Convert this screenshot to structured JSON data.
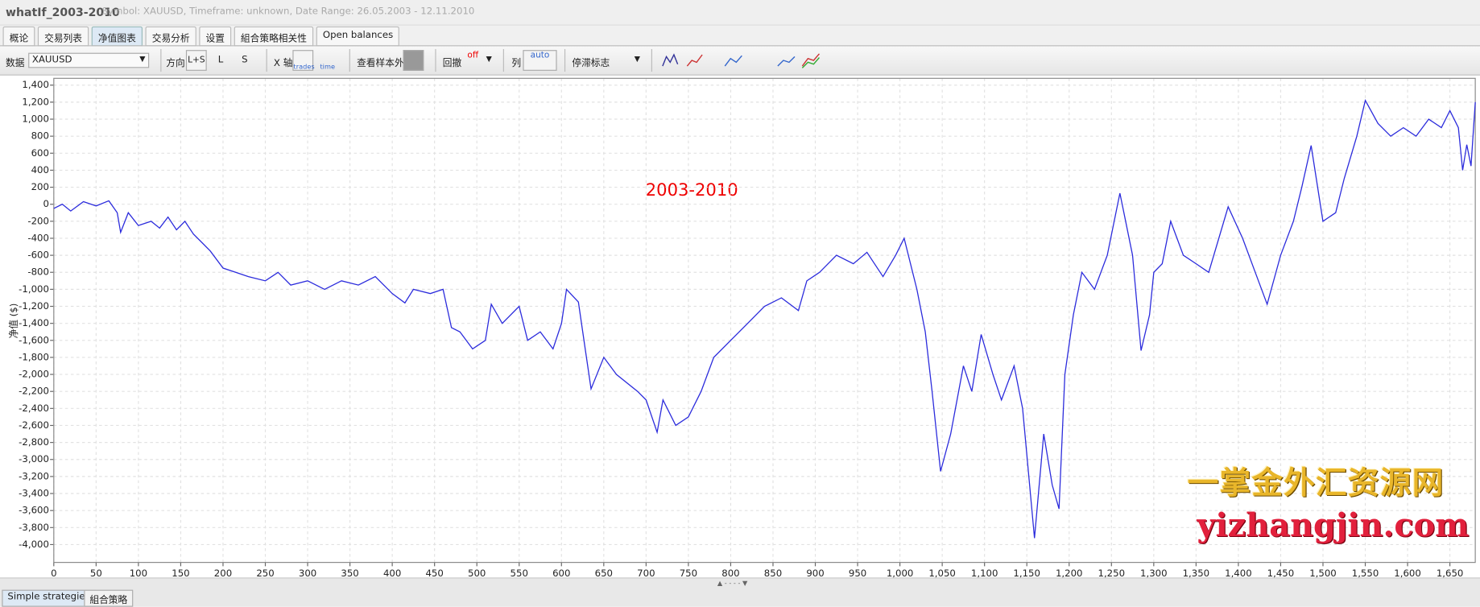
{
  "window": {
    "title": "whatIf_2003-2010",
    "info": "Symbol: XAUUSD, Timeframe: unknown, Date Range: 26.05.2003 - 12.11.2010"
  },
  "tabs": [
    "概论",
    "交易列表",
    "净值图表",
    "交易分析",
    "设置",
    "組合策略相关性",
    "Open balances"
  ],
  "toolbar": {
    "data_label": "数据",
    "data_value": "XAUUSD",
    "direction_label": "方向",
    "direction_options": [
      "L+S",
      "L",
      "S"
    ],
    "x_axis_label": "X 轴",
    "x_axis_options": [
      "trades",
      "time"
    ],
    "oos_label": "查看样本外",
    "drawdown_label": "回撤",
    "drawdown_value": "off",
    "columns_label": "列",
    "columns_value": "auto",
    "stagnation_label": "停滞标志"
  },
  "chart_data": {
    "type": "line",
    "annotation": "2003-2010",
    "y_label": "净值 ($)",
    "color": "#2b2bdc",
    "grid": true,
    "xlim": [
      0,
      1680
    ],
    "ylim": [
      -4210,
      1480
    ],
    "xticks": [
      0,
      50,
      100,
      150,
      200,
      250,
      300,
      350,
      400,
      450,
      500,
      550,
      600,
      650,
      700,
      750,
      800,
      850,
      900,
      950,
      {
        "value": 1000,
        "label": "1,000"
      },
      {
        "value": 1050,
        "label": "1,050"
      },
      {
        "value": 1100,
        "label": "1,100"
      },
      {
        "value": 1150,
        "label": "1,150"
      },
      {
        "value": 1200,
        "label": "1,200"
      },
      {
        "value": 1250,
        "label": "1,250"
      },
      {
        "value": 1300,
        "label": "1,300"
      },
      {
        "value": 1350,
        "label": "1,350"
      },
      {
        "value": 1400,
        "label": "1,400"
      },
      {
        "value": 1450,
        "label": "1,450"
      },
      {
        "value": 1500,
        "label": "1,500"
      },
      {
        "value": 1550,
        "label": "1,550"
      },
      {
        "value": 1600,
        "label": "1,600"
      },
      {
        "value": 1650,
        "label": "1,650"
      }
    ],
    "yticks": [
      {
        "value": -4000,
        "label": "-4,000"
      },
      {
        "value": -3800,
        "label": "-3,800"
      },
      {
        "value": -3600,
        "label": "-3,600"
      },
      {
        "value": -3400,
        "label": "-3,400"
      },
      {
        "value": -3200,
        "label": "-3,200"
      },
      {
        "value": -3000,
        "label": "-3,000"
      },
      {
        "value": -2800,
        "label": "-2,800"
      },
      {
        "value": -2600,
        "label": "-2,600"
      },
      {
        "value": -2400,
        "label": "-2,400"
      },
      {
        "value": -2200,
        "label": "-2,200"
      },
      {
        "value": -2000,
        "label": "-2,000"
      },
      {
        "value": -1800,
        "label": "-1,800"
      },
      {
        "value": -1600,
        "label": "-1,600"
      },
      {
        "value": -1400,
        "label": "-1,400"
      },
      {
        "value": -1200,
        "label": "-1,200"
      },
      {
        "value": -1000,
        "label": "-1,000"
      },
      -800,
      -600,
      -400,
      -200,
      0,
      200,
      400,
      600,
      800,
      {
        "value": 1000,
        "label": "1,000"
      },
      {
        "value": 1200,
        "label": "1,200"
      },
      {
        "value": 1400,
        "label": "1,400"
      }
    ],
    "x": [
      0,
      10,
      20,
      35,
      50,
      65,
      75,
      79,
      88,
      100,
      115,
      125,
      135,
      145,
      155,
      165,
      175,
      185,
      200,
      215,
      230,
      250,
      265,
      280,
      300,
      320,
      340,
      360,
      380,
      400,
      415,
      425,
      445,
      460,
      470,
      480,
      495,
      510,
      517,
      530,
      540,
      550,
      560,
      575,
      590,
      600,
      606,
      620,
      628,
      635,
      650,
      665,
      690,
      700,
      713,
      720,
      735,
      750,
      765,
      780,
      800,
      820,
      840,
      860,
      880,
      890,
      905,
      925,
      945,
      961,
      980,
      995,
      1005,
      1020,
      1030,
      1038,
      1048,
      1060,
      1075,
      1085,
      1096,
      1110,
      1120,
      1135,
      1145,
      1159,
      1170,
      1180,
      1188,
      1195,
      1205,
      1215,
      1230,
      1245,
      1260,
      1275,
      1285,
      1295,
      1300,
      1310,
      1320,
      1335,
      1350,
      1365,
      1388,
      1405,
      1420,
      1434,
      1450,
      1465,
      1475,
      1486,
      1500,
      1515,
      1525,
      1540,
      1550,
      1565,
      1580,
      1595,
      1610,
      1625,
      1640,
      1650,
      1660,
      1665,
      1670,
      1675,
      1680
    ],
    "values": [
      -50,
      0,
      -80,
      30,
      -20,
      40,
      -100,
      -330,
      -100,
      -250,
      -200,
      -280,
      -150,
      -300,
      -200,
      -350,
      -450,
      -550,
      -750,
      -800,
      -850,
      -900,
      -800,
      -950,
      -900,
      -1000,
      -900,
      -950,
      -850,
      -1050,
      -1160,
      -1000,
      -1050,
      -1000,
      -1450,
      -1500,
      -1700,
      -1600,
      -1175,
      -1400,
      -1300,
      -1200,
      -1600,
      -1500,
      -1700,
      -1400,
      -1000,
      -1150,
      -1700,
      -2170,
      -1800,
      -2000,
      -2200,
      -2300,
      -2680,
      -2300,
      -2600,
      -2500,
      -2200,
      -1800,
      -1600,
      -1400,
      -1200,
      -1100,
      -1250,
      -900,
      -800,
      -600,
      -700,
      -565,
      -850,
      -600,
      -400,
      -1000,
      -1500,
      -2200,
      -3140,
      -2700,
      -1900,
      -2200,
      -1530,
      -2000,
      -2300,
      -1900,
      -2400,
      -3925,
      -2700,
      -3300,
      -3580,
      -2000,
      -1300,
      -800,
      -1000,
      -600,
      130,
      -600,
      -1720,
      -1300,
      -800,
      -700,
      -200,
      -600,
      -700,
      -800,
      -30,
      -400,
      -800,
      -1175,
      -600,
      -200,
      200,
      690,
      -200,
      -100,
      300,
      800,
      1220,
      950,
      800,
      900,
      800,
      1000,
      900,
      1100,
      900,
      400,
      700,
      450,
      1200
    ]
  },
  "watermark": [
    "一掌金外汇资源网",
    "yizhangjin.com"
  ],
  "bottom_tabs": [
    "Simple strategies",
    "組合策略"
  ]
}
